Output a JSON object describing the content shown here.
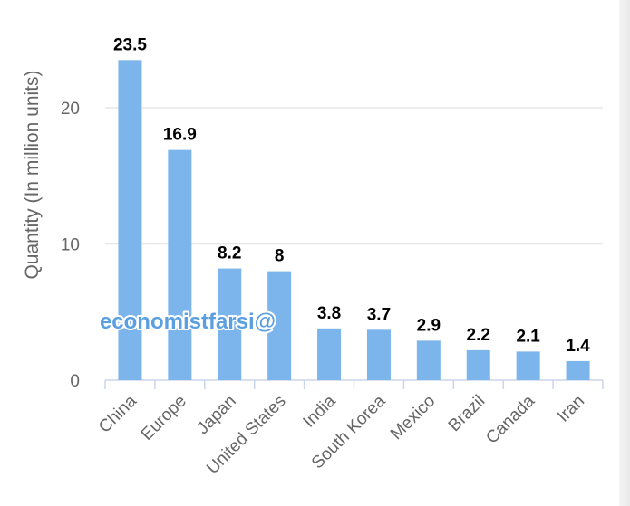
{
  "watermark": "economistfarsi@",
  "colors": {
    "bar": "#7cb5ec",
    "grid": "#e6e6e6",
    "axis_text": "#666666",
    "value_text": "#000000",
    "watermark_fill": "#5a9fe0",
    "watermark_stroke": "#ffffff"
  },
  "chart_data": {
    "type": "bar",
    "title": "",
    "xlabel": "",
    "ylabel": "Quantity (In million units)",
    "categories": [
      "China",
      "Europe",
      "Japan",
      "United States",
      "India",
      "South Korea",
      "Mexico",
      "Brazil",
      "Canada",
      "Iran"
    ],
    "values": [
      23.5,
      16.9,
      8.2,
      8,
      3.8,
      3.7,
      2.9,
      2.2,
      2.1,
      1.4
    ],
    "value_labels": [
      "23.5",
      "16.9",
      "8.2",
      "8",
      "3.8",
      "3.7",
      "2.9",
      "2.2",
      "2.1",
      "1.4"
    ],
    "yticks": [
      "0",
      "10",
      "20"
    ],
    "ylim": [
      0,
      25
    ],
    "grid": true,
    "legend": "none"
  }
}
